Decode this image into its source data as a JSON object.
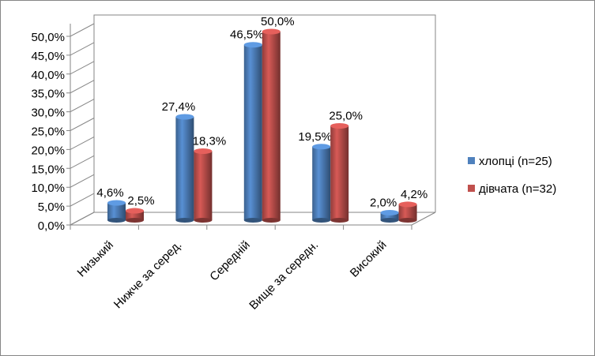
{
  "chart_data": {
    "type": "bar",
    "title": "",
    "xlabel": "",
    "ylabel": "",
    "ylim": [
      0,
      50
    ],
    "y_ticks": [
      "0,0%",
      "5,0%",
      "10,0%",
      "15,0%",
      "20,0%",
      "25,0%",
      "30,0%",
      "35,0%",
      "40,0%",
      "45,0%",
      "50,0%"
    ],
    "categories": [
      "Низький",
      "Нижче за серед.",
      "Середній",
      "Вище за середн.",
      "Високий"
    ],
    "series": [
      {
        "name": "хлопці (n=25)",
        "color": "#4F81BD",
        "values": [
          4.6,
          27.4,
          46.5,
          19.5,
          2.0
        ],
        "labels": [
          "4,6%",
          "27,4%",
          "46,5%",
          "19,5%",
          "2,0%"
        ]
      },
      {
        "name": "дівчата (n=32)",
        "color": "#C0504D",
        "values": [
          2.5,
          18.3,
          50.0,
          25.0,
          4.2
        ],
        "labels": [
          "2,5%",
          "18,3%",
          "50,0%",
          "25,0%",
          "4,2%"
        ]
      }
    ],
    "legend_position": "right",
    "grid": false,
    "style": "3d-cylinder"
  }
}
